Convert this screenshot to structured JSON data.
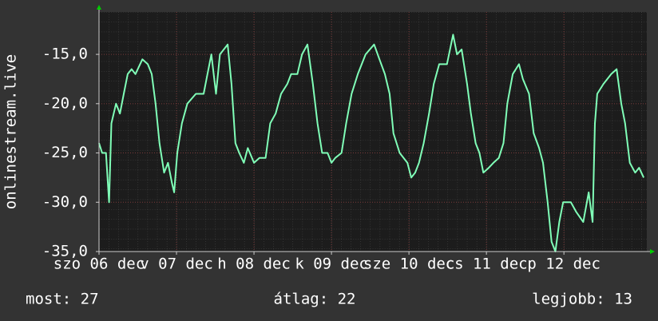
{
  "chart_data": {
    "type": "line",
    "y_label": "onlinestream.live",
    "color": "#80ffb8",
    "grid": true,
    "ylim": [
      -35,
      -10.7
    ],
    "yticks": [
      {
        "value": -15,
        "label": "-15,0"
      },
      {
        "value": -20,
        "label": "-20,0"
      },
      {
        "value": -25,
        "label": "-25,0"
      },
      {
        "value": -30,
        "label": "-30,0"
      },
      {
        "value": -35,
        "label": "-35,0"
      }
    ],
    "xlim": [
      0,
      7.07
    ],
    "xticks": [
      {
        "value": 0,
        "label": "szo 06 dec"
      },
      {
        "value": 1,
        "label": "v 07 dec"
      },
      {
        "value": 2,
        "label": "h 08 dec"
      },
      {
        "value": 3,
        "label": "k 09 dec"
      },
      {
        "value": 4,
        "label": "sze 10 dec"
      },
      {
        "value": 5,
        "label": "cs 11 dec"
      },
      {
        "value": 6,
        "label": "p 12 dec"
      }
    ],
    "x": [
      0,
      0.04,
      0.09,
      0.13,
      0.16,
      0.22,
      0.27,
      0.32,
      0.37,
      0.42,
      0.47,
      0.56,
      0.63,
      0.68,
      0.73,
      0.78,
      0.84,
      0.89,
      0.94,
      0.97,
      1.01,
      1.07,
      1.14,
      1.25,
      1.35,
      1.4,
      1.45,
      1.51,
      1.56,
      1.66,
      1.71,
      1.76,
      1.81,
      1.87,
      1.92,
      2.0,
      2.07,
      2.15,
      2.21,
      2.28,
      2.35,
      2.43,
      2.48,
      2.56,
      2.62,
      2.69,
      2.76,
      2.82,
      2.88,
      2.95,
      3.0,
      3.05,
      3.13,
      3.19,
      3.26,
      3.34,
      3.44,
      3.55,
      3.62,
      3.69,
      3.75,
      3.8,
      3.88,
      3.98,
      4.03,
      4.08,
      4.13,
      4.19,
      4.26,
      4.32,
      4.39,
      4.49,
      4.57,
      4.62,
      4.68,
      4.75,
      4.8,
      4.86,
      4.91,
      4.96,
      5.03,
      5.09,
      5.16,
      5.22,
      5.27,
      5.34,
      5.42,
      5.47,
      5.55,
      5.61,
      5.68,
      5.73,
      5.79,
      5.84,
      5.89,
      5.94,
      5.99,
      6.09,
      6.16,
      6.25,
      6.32,
      6.37,
      6.4,
      6.43,
      6.51,
      6.56,
      6.61,
      6.68,
      6.74,
      6.79,
      6.85,
      6.92,
      6.97,
      7.03
    ],
    "values": [
      -24,
      -25,
      -25,
      -30,
      -22,
      -20,
      -21,
      -19,
      -17,
      -16.5,
      -17,
      -15.5,
      -16,
      -17,
      -20,
      -24,
      -27,
      -26,
      -28,
      -29,
      -25,
      -22,
      -20,
      -19,
      -19,
      -17,
      -15,
      -19,
      -15,
      -14,
      -18,
      -24,
      -25,
      -26,
      -24.5,
      -26,
      -25.5,
      -25.5,
      -22,
      -21,
      -19,
      -18,
      -17,
      -17,
      -15,
      -14,
      -18,
      -22,
      -25,
      -25,
      -26,
      -25.5,
      -25,
      -22,
      -19,
      -17,
      -15,
      -14,
      -15.5,
      -17,
      -19,
      -23,
      -25,
      -26,
      -27.5,
      -27,
      -26,
      -24,
      -21,
      -18,
      -16,
      -16,
      -13,
      -15,
      -14.5,
      -18,
      -21,
      -24,
      -25,
      -27,
      -26.5,
      -26,
      -25.5,
      -24,
      -20,
      -17,
      -16,
      -17.5,
      -19,
      -23,
      -24.5,
      -26,
      -30,
      -34,
      -35,
      -32,
      -30,
      -30,
      -31,
      -32,
      -29,
      -32,
      -22,
      -19,
      -18,
      -17.5,
      -17,
      -16.5,
      -20,
      -22,
      -26,
      -27,
      -26.5,
      -27.5
    ],
    "annotations": [
      "most: 27",
      "átlag: 22",
      "legjobb: 13"
    ]
  }
}
